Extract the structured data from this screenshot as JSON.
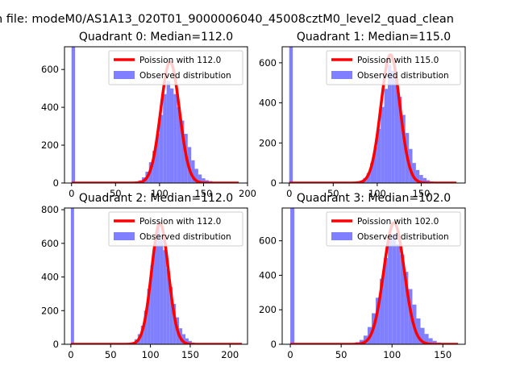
{
  "figure": {
    "suptitle": "n file: modeM0/AS1A13_020T01_9000006040_45008cztM0_level2_quad_clean"
  },
  "colors": {
    "poisson": "#ff0000",
    "observed": "#7f7fff",
    "background": "#ffffff"
  },
  "chart_data": [
    {
      "type": "bar",
      "title": "Quadrant 0: Median=112.0",
      "median": 112.0,
      "xlim": [
        -8,
        200
      ],
      "ylim": [
        0,
        720
      ],
      "xticks": [
        0,
        50,
        100,
        150,
        200
      ],
      "yticks": [
        0,
        200,
        400,
        600
      ],
      "legend": {
        "placement": "top-right",
        "entries": [
          "Poission with 112.0",
          "Observed distribution"
        ]
      },
      "observed_distribution": {
        "bin_width": 4,
        "bins": [
          {
            "x": 0,
            "count": 720
          },
          {
            "x": 64,
            "count": 2
          },
          {
            "x": 68,
            "count": 4
          },
          {
            "x": 72,
            "count": 7
          },
          {
            "x": 76,
            "count": 14
          },
          {
            "x": 80,
            "count": 30
          },
          {
            "x": 84,
            "count": 60
          },
          {
            "x": 88,
            "count": 110
          },
          {
            "x": 92,
            "count": 170
          },
          {
            "x": 96,
            "count": 260
          },
          {
            "x": 100,
            "count": 360
          },
          {
            "x": 104,
            "count": 470
          },
          {
            "x": 108,
            "count": 540
          },
          {
            "x": 112,
            "count": 500
          },
          {
            "x": 116,
            "count": 470
          },
          {
            "x": 120,
            "count": 400
          },
          {
            "x": 124,
            "count": 330
          },
          {
            "x": 128,
            "count": 260
          },
          {
            "x": 132,
            "count": 190
          },
          {
            "x": 136,
            "count": 120
          },
          {
            "x": 140,
            "count": 75
          },
          {
            "x": 144,
            "count": 45
          },
          {
            "x": 148,
            "count": 25
          },
          {
            "x": 152,
            "count": 15
          },
          {
            "x": 156,
            "count": 10
          },
          {
            "x": 160,
            "count": 6
          },
          {
            "x": 164,
            "count": 4
          },
          {
            "x": 168,
            "count": 2
          }
        ]
      },
      "poisson_curve": {
        "x_range": [
          0,
          190
        ],
        "peak": 640
      }
    },
    {
      "type": "bar",
      "title": "Quadrant 1: Median=115.0",
      "median": 115.0,
      "xlim": [
        -8,
        200
      ],
      "ylim": [
        0,
        680
      ],
      "xticks": [
        0,
        50,
        100,
        150
      ],
      "yticks": [
        0,
        200,
        400,
        600
      ],
      "legend": {
        "placement": "top-right",
        "entries": [
          "Poission with 115.0",
          "Observed distribution"
        ]
      },
      "observed_distribution": {
        "bin_width": 4,
        "bins": [
          {
            "x": 0,
            "count": 680
          },
          {
            "x": 72,
            "count": 2
          },
          {
            "x": 76,
            "count": 5
          },
          {
            "x": 80,
            "count": 12
          },
          {
            "x": 84,
            "count": 25
          },
          {
            "x": 88,
            "count": 50
          },
          {
            "x": 92,
            "count": 100
          },
          {
            "x": 96,
            "count": 180
          },
          {
            "x": 100,
            "count": 270
          },
          {
            "x": 104,
            "count": 380
          },
          {
            "x": 108,
            "count": 470
          },
          {
            "x": 112,
            "count": 590
          },
          {
            "x": 116,
            "count": 560
          },
          {
            "x": 120,
            "count": 520
          },
          {
            "x": 124,
            "count": 430
          },
          {
            "x": 128,
            "count": 340
          },
          {
            "x": 132,
            "count": 250
          },
          {
            "x": 136,
            "count": 170
          },
          {
            "x": 140,
            "count": 100
          },
          {
            "x": 144,
            "count": 65
          },
          {
            "x": 148,
            "count": 40
          },
          {
            "x": 152,
            "count": 25
          },
          {
            "x": 156,
            "count": 14
          },
          {
            "x": 160,
            "count": 8
          },
          {
            "x": 164,
            "count": 4
          },
          {
            "x": 168,
            "count": 2
          }
        ]
      },
      "poisson_curve": {
        "x_range": [
          0,
          190
        ],
        "peak": 640
      }
    },
    {
      "type": "bar",
      "title": "Quadrant 2: Median=112.0",
      "median": 112.0,
      "xlim": [
        -8,
        222
      ],
      "ylim": [
        0,
        810
      ],
      "xticks": [
        0,
        50,
        100,
        150,
        200
      ],
      "yticks": [
        0,
        200,
        400,
        600,
        800
      ],
      "legend": {
        "placement": "top-right",
        "entries": [
          "Poission with 112.0",
          "Observed distribution"
        ]
      },
      "observed_distribution": {
        "bin_width": 4,
        "bins": [
          {
            "x": 0,
            "count": 810
          },
          {
            "x": 68,
            "count": 2
          },
          {
            "x": 72,
            "count": 5
          },
          {
            "x": 76,
            "count": 12
          },
          {
            "x": 80,
            "count": 30
          },
          {
            "x": 84,
            "count": 60
          },
          {
            "x": 88,
            "count": 110
          },
          {
            "x": 92,
            "count": 200
          },
          {
            "x": 96,
            "count": 330
          },
          {
            "x": 100,
            "count": 470
          },
          {
            "x": 104,
            "count": 600
          },
          {
            "x": 108,
            "count": 720
          },
          {
            "x": 112,
            "count": 620
          },
          {
            "x": 116,
            "count": 560
          },
          {
            "x": 120,
            "count": 450
          },
          {
            "x": 124,
            "count": 340
          },
          {
            "x": 128,
            "count": 240
          },
          {
            "x": 132,
            "count": 160
          },
          {
            "x": 136,
            "count": 95
          },
          {
            "x": 140,
            "count": 60
          },
          {
            "x": 144,
            "count": 35
          },
          {
            "x": 148,
            "count": 20
          },
          {
            "x": 152,
            "count": 10
          },
          {
            "x": 156,
            "count": 5
          },
          {
            "x": 160,
            "count": 2
          }
        ]
      },
      "poisson_curve": {
        "x_range": [
          0,
          215
        ],
        "peak": 720
      }
    },
    {
      "type": "bar",
      "title": "Quadrant 3: Median=102.0",
      "median": 102.0,
      "xlim": [
        -8,
        172
      ],
      "ylim": [
        0,
        790
      ],
      "xticks": [
        0,
        50,
        100,
        150
      ],
      "yticks": [
        0,
        200,
        400,
        600
      ],
      "legend": {
        "placement": "top-right",
        "entries": [
          "Poission with 102.0",
          "Observed distribution"
        ]
      },
      "observed_distribution": {
        "bin_width": 4,
        "bins": [
          {
            "x": 0,
            "count": 790
          },
          {
            "x": 56,
            "count": 2
          },
          {
            "x": 60,
            "count": 5
          },
          {
            "x": 64,
            "count": 12
          },
          {
            "x": 68,
            "count": 25
          },
          {
            "x": 72,
            "count": 50
          },
          {
            "x": 76,
            "count": 100
          },
          {
            "x": 80,
            "count": 180
          },
          {
            "x": 84,
            "count": 270
          },
          {
            "x": 88,
            "count": 380
          },
          {
            "x": 92,
            "count": 500
          },
          {
            "x": 96,
            "count": 610
          },
          {
            "x": 100,
            "count": 640
          },
          {
            "x": 104,
            "count": 580
          },
          {
            "x": 108,
            "count": 520
          },
          {
            "x": 112,
            "count": 420
          },
          {
            "x": 116,
            "count": 320
          },
          {
            "x": 120,
            "count": 230
          },
          {
            "x": 124,
            "count": 150
          },
          {
            "x": 128,
            "count": 95
          },
          {
            "x": 132,
            "count": 60
          },
          {
            "x": 136,
            "count": 35
          },
          {
            "x": 140,
            "count": 20
          },
          {
            "x": 144,
            "count": 10
          },
          {
            "x": 148,
            "count": 5
          }
        ]
      },
      "poisson_curve": {
        "x_range": [
          0,
          165
        ],
        "peak": 705
      }
    }
  ]
}
